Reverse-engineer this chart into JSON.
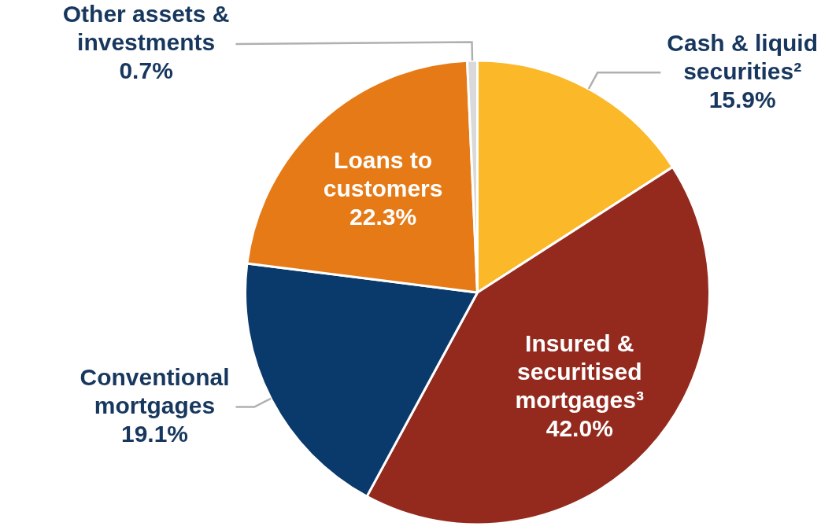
{
  "chart_data": {
    "type": "pie",
    "categories": [
      "Cash & liquid securities²",
      "Insured & securitised mortgages³",
      "Conventional mortgages",
      "Loans to customers",
      "Other assets & investments"
    ],
    "values": [
      15.9,
      42.0,
      19.1,
      22.3,
      0.7
    ],
    "value_labels": [
      "15.9%",
      "42.0%",
      "19.1%",
      "22.3%",
      "0.7%"
    ],
    "colors": [
      "#fbb829",
      "#942a1e",
      "#0a3a6b",
      "#e57a17",
      "#d9d9d9"
    ],
    "legend": false
  }
}
